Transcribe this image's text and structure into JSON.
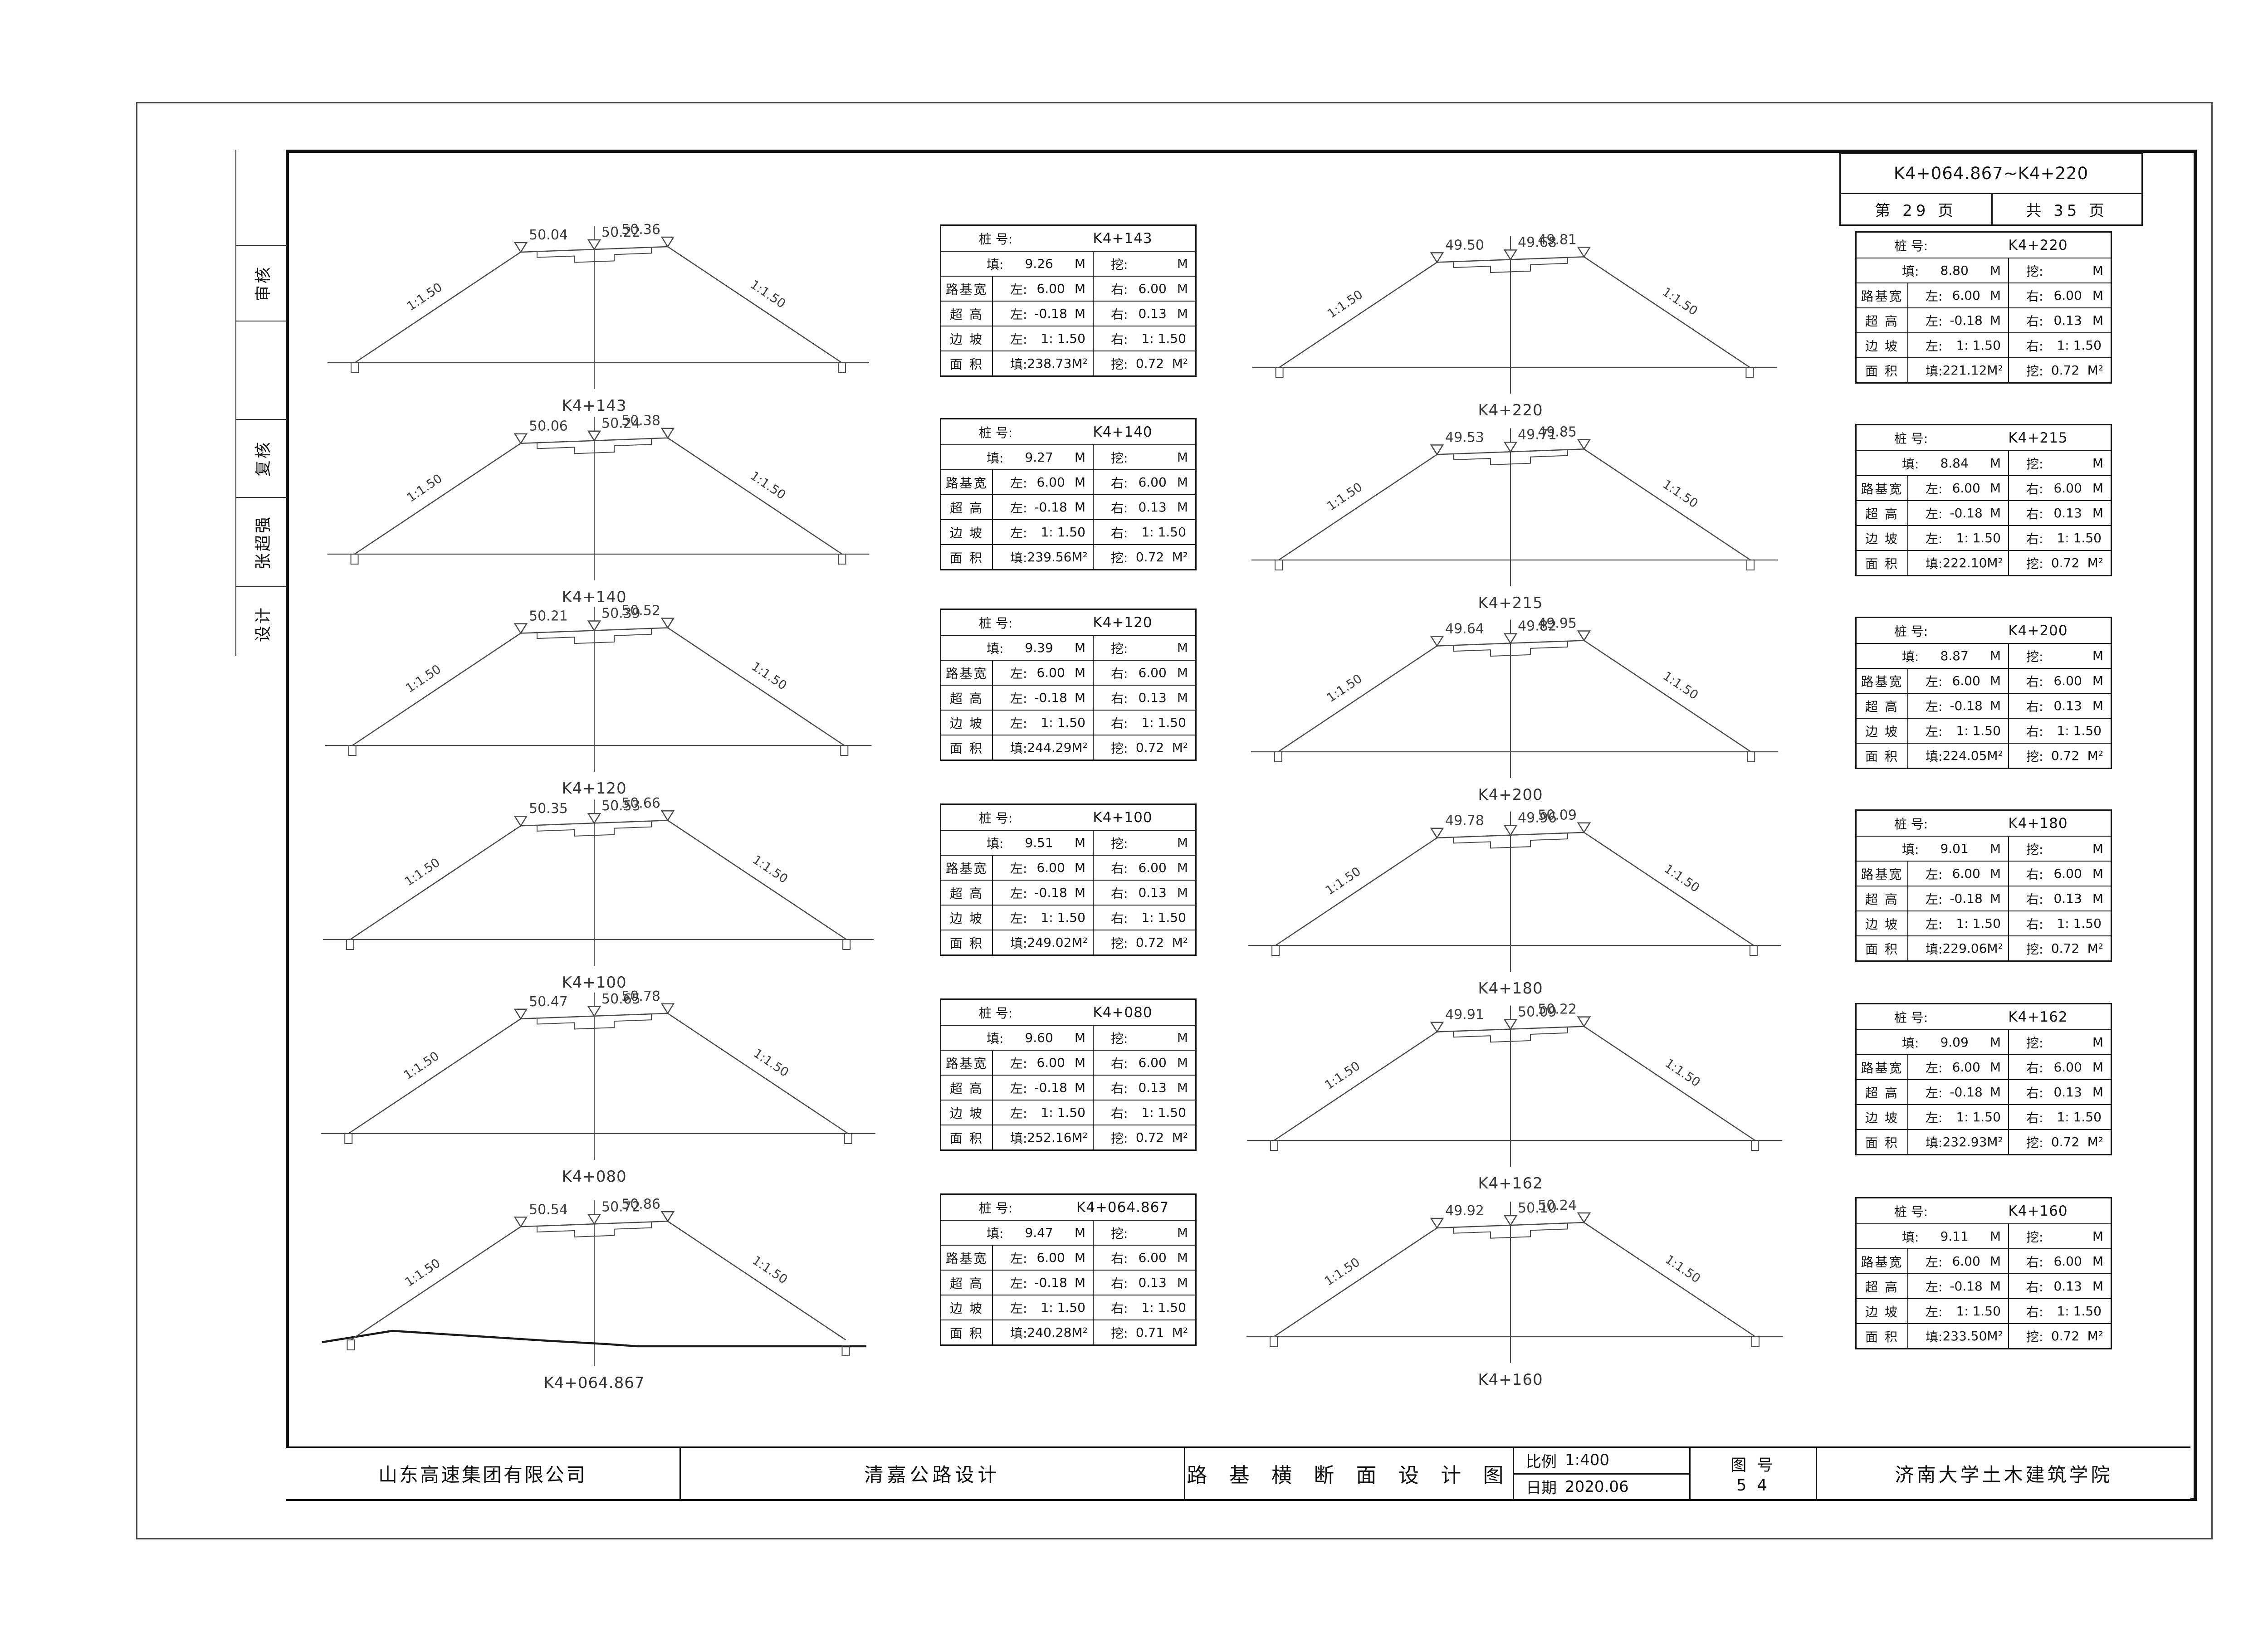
{
  "header": {
    "range": "K4+064.867~K4+220",
    "page": "第 29 页",
    "total": "共 35 页"
  },
  "sidebar": {
    "cells": [
      "",
      "审核",
      "",
      "复核",
      "张超强",
      "设计"
    ]
  },
  "table_labels": {
    "station_label": "桩 号:",
    "fill_label": "填:",
    "cut_label": "挖:",
    "roadbed_label": "路基宽",
    "super_label": "超 高",
    "slope_label": "边 坡",
    "area_label": "面 积",
    "left_label": "左:",
    "right_label": "右:",
    "unit_m": "M",
    "unit_m2": "M²"
  },
  "diagram": {
    "slope_text": "1:1.50"
  },
  "sections": {
    "left": [
      {
        "station": "K4+143",
        "elev_left": "50.04",
        "elev_center": "50.22",
        "elev_right": "50.36",
        "fill_m": "9.26",
        "cut_m": "",
        "roadbed_left": "6.00",
        "roadbed_right": "6.00",
        "super_left": "-0.18",
        "super_right": "0.13",
        "slope_left": "1: 1.50",
        "slope_right": "1: 1.50",
        "area_fill": "238.73",
        "area_cut": "0.72"
      },
      {
        "station": "K4+140",
        "elev_left": "50.06",
        "elev_center": "50.24",
        "elev_right": "50.38",
        "fill_m": "9.27",
        "cut_m": "",
        "roadbed_left": "6.00",
        "roadbed_right": "6.00",
        "super_left": "-0.18",
        "super_right": "0.13",
        "slope_left": "1: 1.50",
        "slope_right": "1: 1.50",
        "area_fill": "239.56",
        "area_cut": "0.72"
      },
      {
        "station": "K4+120",
        "elev_left": "50.21",
        "elev_center": "50.39",
        "elev_right": "50.52",
        "fill_m": "9.39",
        "cut_m": "",
        "roadbed_left": "6.00",
        "roadbed_right": "6.00",
        "super_left": "-0.18",
        "super_right": "0.13",
        "slope_left": "1: 1.50",
        "slope_right": "1: 1.50",
        "area_fill": "244.29",
        "area_cut": "0.72"
      },
      {
        "station": "K4+100",
        "elev_left": "50.35",
        "elev_center": "50.53",
        "elev_right": "50.66",
        "fill_m": "9.51",
        "cut_m": "",
        "roadbed_left": "6.00",
        "roadbed_right": "6.00",
        "super_left": "-0.18",
        "super_right": "0.13",
        "slope_left": "1: 1.50",
        "slope_right": "1: 1.50",
        "area_fill": "249.02",
        "area_cut": "0.72"
      },
      {
        "station": "K4+080",
        "elev_left": "50.47",
        "elev_center": "50.65",
        "elev_right": "50.78",
        "fill_m": "9.60",
        "cut_m": "",
        "roadbed_left": "6.00",
        "roadbed_right": "6.00",
        "super_left": "-0.18",
        "super_right": "0.13",
        "slope_left": "1: 1.50",
        "slope_right": "1: 1.50",
        "area_fill": "252.16",
        "area_cut": "0.72"
      },
      {
        "station": "K4+064.867",
        "elev_left": "50.54",
        "elev_center": "50.72",
        "elev_right": "50.86",
        "fill_m": "9.47",
        "cut_m": "",
        "roadbed_left": "6.00",
        "roadbed_right": "6.00",
        "super_left": "-0.18",
        "super_right": "0.13",
        "slope_left": "1: 1.50",
        "slope_right": "1: 1.50",
        "area_fill": "240.28",
        "area_cut": "0.71",
        "ground_profile": [
          [
            -600,
            5
          ],
          [
            -445,
            -20
          ],
          [
            -100,
            2
          ],
          [
            25,
            9
          ],
          [
            95,
            14
          ],
          [
            600,
            14
          ]
        ],
        "ground_bold": true
      }
    ],
    "right": [
      {
        "station": "K4+220",
        "elev_left": "49.50",
        "elev_center": "49.68",
        "elev_right": "49.81",
        "fill_m": "8.80",
        "cut_m": "",
        "roadbed_left": "6.00",
        "roadbed_right": "6.00",
        "super_left": "-0.18",
        "super_right": "0.13",
        "slope_left": "1: 1.50",
        "slope_right": "1: 1.50",
        "area_fill": "221.12",
        "area_cut": "0.72"
      },
      {
        "station": "K4+215",
        "elev_left": "49.53",
        "elev_center": "49.71",
        "elev_right": "49.85",
        "fill_m": "8.84",
        "cut_m": "",
        "roadbed_left": "6.00",
        "roadbed_right": "6.00",
        "super_left": "-0.18",
        "super_right": "0.13",
        "slope_left": "1: 1.50",
        "slope_right": "1: 1.50",
        "area_fill": "222.10",
        "area_cut": "0.72"
      },
      {
        "station": "K4+200",
        "elev_left": "49.64",
        "elev_center": "49.82",
        "elev_right": "49.95",
        "fill_m": "8.87",
        "cut_m": "",
        "roadbed_left": "6.00",
        "roadbed_right": "6.00",
        "super_left": "-0.18",
        "super_right": "0.13",
        "slope_left": "1: 1.50",
        "slope_right": "1: 1.50",
        "area_fill": "224.05",
        "area_cut": "0.72"
      },
      {
        "station": "K4+180",
        "elev_left": "49.78",
        "elev_center": "49.96",
        "elev_right": "50.09",
        "fill_m": "9.01",
        "cut_m": "",
        "roadbed_left": "6.00",
        "roadbed_right": "6.00",
        "super_left": "-0.18",
        "super_right": "0.13",
        "slope_left": "1: 1.50",
        "slope_right": "1: 1.50",
        "area_fill": "229.06",
        "area_cut": "0.72"
      },
      {
        "station": "K4+162",
        "elev_left": "49.91",
        "elev_center": "50.09",
        "elev_right": "50.22",
        "fill_m": "9.09",
        "cut_m": "",
        "roadbed_left": "6.00",
        "roadbed_right": "6.00",
        "super_left": "-0.18",
        "super_right": "0.13",
        "slope_left": "1: 1.50",
        "slope_right": "1: 1.50",
        "area_fill": "232.93",
        "area_cut": "0.72"
      },
      {
        "station": "K4+160",
        "elev_left": "49.92",
        "elev_center": "50.10",
        "elev_right": "50.24",
        "fill_m": "9.11",
        "cut_m": "",
        "roadbed_left": "6.00",
        "roadbed_right": "6.00",
        "super_left": "-0.18",
        "super_right": "0.13",
        "slope_left": "1: 1.50",
        "slope_right": "1: 1.50",
        "area_fill": "233.50",
        "area_cut": "0.72"
      }
    ]
  },
  "title_block": {
    "company": "山东高速集团有限公司",
    "project": "清嘉公路设计",
    "drawing_title": "路 基 横 断 面 设 计 图",
    "scale_label": "比例",
    "scale_value": "1:400",
    "date_label": "日期",
    "date_value": "2020.06",
    "sheet_label": "图 号",
    "sheet_number": "5 4",
    "institute": "济南大学土木建筑学院"
  }
}
